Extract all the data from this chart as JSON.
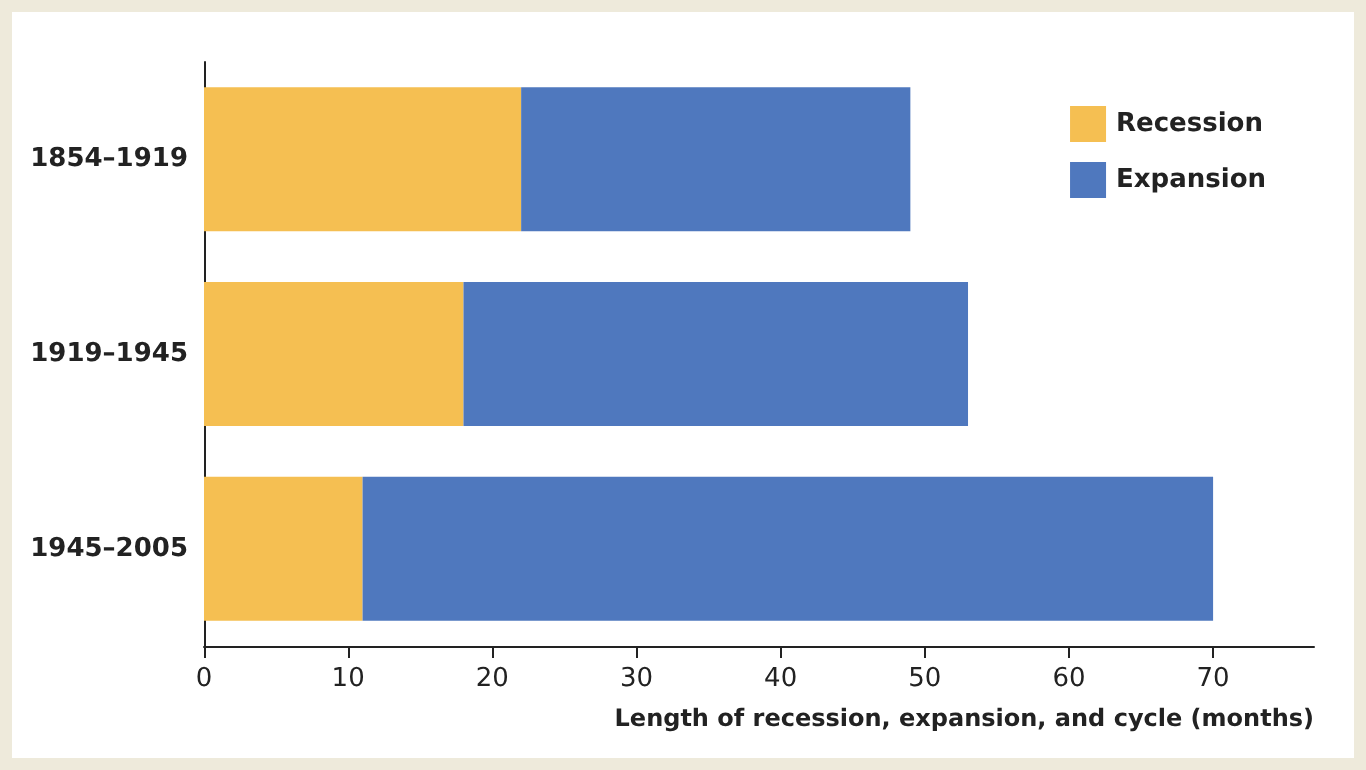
{
  "chart_data": {
    "type": "bar",
    "orientation": "horizontal",
    "stacked": true,
    "xlabel": "Length of recession, expansion, and cycle (months)",
    "categories": [
      "1854–1919",
      "1919–1945",
      "1945–2005"
    ],
    "series": [
      {
        "name": "Recession",
        "color": "#f5bf52",
        "values": [
          22,
          18,
          11
        ]
      },
      {
        "name": "Expansion",
        "color": "#4f78be",
        "values": [
          27,
          35,
          59
        ]
      }
    ],
    "xlim": [
      0,
      77
    ],
    "xticks": [
      0,
      10,
      20,
      30,
      40,
      50,
      60,
      70
    ],
    "grid": false,
    "legend": "top right"
  }
}
